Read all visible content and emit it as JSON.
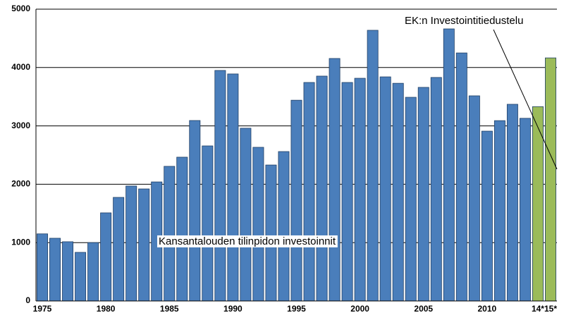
{
  "chart_data": {
    "type": "bar",
    "categories": [
      "1975",
      null,
      null,
      null,
      null,
      "1980",
      null,
      null,
      null,
      null,
      "1985",
      null,
      null,
      null,
      null,
      "1990",
      null,
      null,
      null,
      null,
      "1995",
      null,
      null,
      null,
      null,
      "2000",
      null,
      null,
      null,
      null,
      "2005",
      null,
      null,
      null,
      null,
      "2010",
      null,
      null,
      null,
      "14*",
      "15*"
    ],
    "series": [
      {
        "name": "Kansantalouden tilinpidon investoinnit",
        "color": "#4a7ebb",
        "values": [
          1150,
          1075,
          1015,
          833,
          1000,
          1510,
          1775,
          1970,
          1920,
          2040,
          2307,
          2464,
          3092,
          2657,
          3950,
          3890,
          2960,
          2633,
          2330,
          2560,
          3440,
          3744,
          3853,
          4155,
          3744,
          3816,
          4638,
          3840,
          3730,
          3490,
          3660,
          3830,
          4662,
          4250,
          3515,
          2910,
          3090,
          3370,
          3130,
          null,
          null
        ]
      },
      {
        "name": "EK:n Investointitiedustelu",
        "color": "#9bbb59",
        "values": [
          null,
          null,
          null,
          null,
          null,
          null,
          null,
          null,
          null,
          null,
          null,
          null,
          null,
          null,
          null,
          null,
          null,
          null,
          null,
          null,
          null,
          null,
          null,
          null,
          null,
          null,
          null,
          null,
          null,
          null,
          null,
          null,
          null,
          null,
          null,
          null,
          null,
          null,
          null,
          3330,
          4165
        ]
      }
    ],
    "ylim": [
      0,
      5000
    ],
    "yticks": [
      0,
      1000,
      2000,
      3000,
      4000,
      5000
    ],
    "grid": true
  }
}
